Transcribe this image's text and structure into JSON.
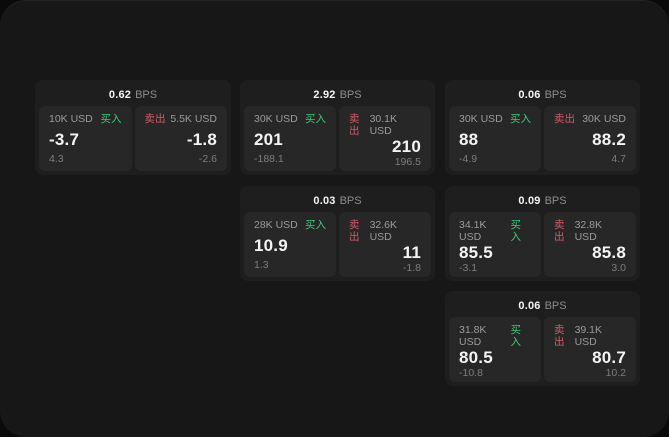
{
  "labels": {
    "buy": "买入",
    "sell": "卖出",
    "bps": "BPS"
  },
  "colors": {
    "buy": "#41c87a",
    "sell": "#d05b68"
  },
  "cards": [
    {
      "bps": "0.62",
      "buy": {
        "notional": "10K USD",
        "price": "-3.7",
        "delta": "4.3"
      },
      "sell": {
        "notional": "5.5K USD",
        "price": "-1.8",
        "delta": "-2.6"
      }
    },
    {
      "bps": "2.92",
      "buy": {
        "notional": "30K USD",
        "price": "201",
        "delta": "-188.1"
      },
      "sell": {
        "notional": "30.1K USD",
        "price": "210",
        "delta": "196.5"
      }
    },
    {
      "bps": "0.06",
      "buy": {
        "notional": "30K USD",
        "price": "88",
        "delta": "-4.9"
      },
      "sell": {
        "notional": "30K USD",
        "price": "88.2",
        "delta": "4.7"
      }
    },
    {
      "bps": "0.03",
      "buy": {
        "notional": "28K USD",
        "price": "10.9",
        "delta": "1.3"
      },
      "sell": {
        "notional": "32.6K USD",
        "price": "11",
        "delta": "-1.8"
      }
    },
    {
      "bps": "0.09",
      "buy": {
        "notional": "34.1K USD",
        "price": "85.5",
        "delta": "-3.1"
      },
      "sell": {
        "notional": "32.8K USD",
        "price": "85.8",
        "delta": "3.0"
      }
    },
    {
      "bps": "0.06",
      "buy": {
        "notional": "31.8K USD",
        "price": "80.5",
        "delta": "-10.8"
      },
      "sell": {
        "notional": "39.1K USD",
        "price": "80.7",
        "delta": "10.2"
      }
    }
  ]
}
